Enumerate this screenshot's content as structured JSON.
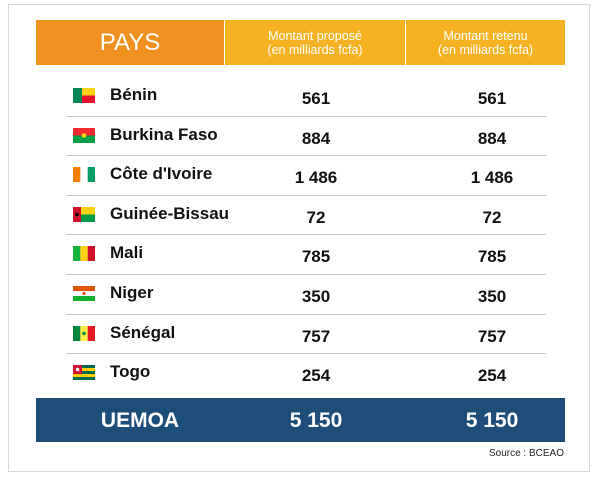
{
  "header": [
    "PAYS",
    [
      "Montant proposé",
      "(en milliards fcfa)"
    ],
    [
      "Montant retenu",
      "(en milliards fcfa)"
    ]
  ],
  "rows": [
    [
      "Bénin",
      "561",
      "561"
    ],
    [
      "Burkina Faso",
      "884",
      "884"
    ],
    [
      "Côte d'Ivoire",
      "1 486",
      "1 486"
    ],
    [
      "Guinée-Bissau",
      "72",
      "72"
    ],
    [
      "Mali",
      "785",
      "785"
    ],
    [
      "Niger",
      "350",
      "350"
    ],
    [
      "Sénégal",
      "757",
      "757"
    ],
    [
      "Togo",
      "254",
      "254"
    ]
  ],
  "total": [
    "UEMOA",
    "5 150",
    "5 150"
  ],
  "source": "Source : BCEAO"
}
